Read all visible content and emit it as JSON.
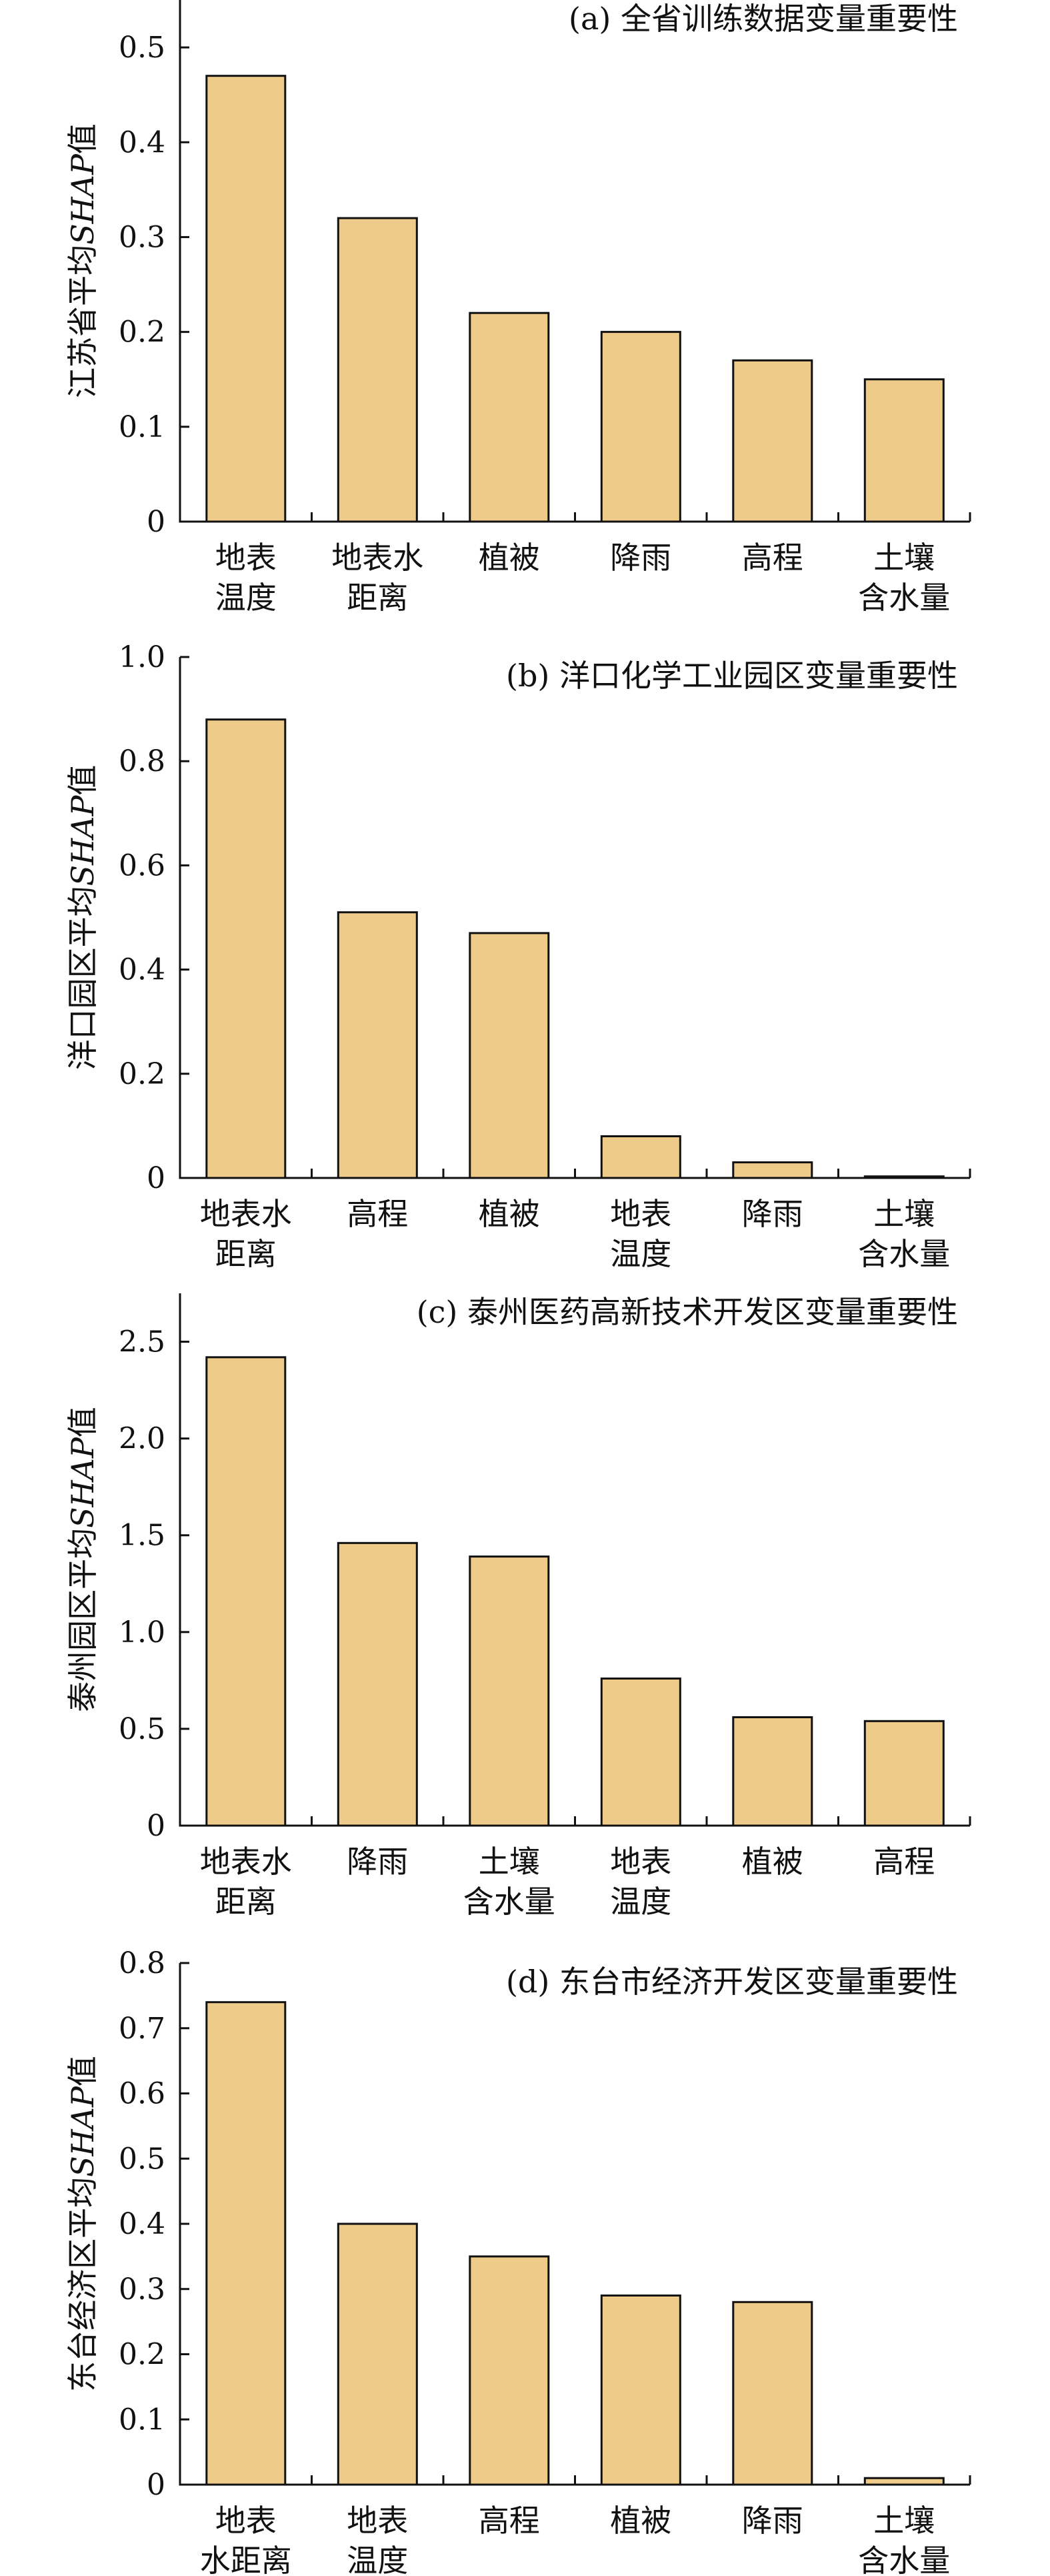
{
  "bar_color": "#efcb8a",
  "bar_stroke": "#111111",
  "chart_data": [
    {
      "type": "bar",
      "title": "(a) 全省训练数据变量重要性",
      "ylabel": "江苏省平均SHAP值",
      "ylim": [
        0,
        0.55
      ],
      "yticks": [
        0,
        0.1,
        0.2,
        0.3,
        0.4,
        0.5
      ],
      "ytick_labels": [
        "0",
        "0.1",
        "0.2",
        "0.3",
        "0.4",
        "0.5"
      ],
      "categories": [
        "地表\n温度",
        "地表水\n距离",
        "植被",
        "降雨",
        "高程",
        "土壤\n含水量"
      ],
      "values": [
        0.47,
        0.32,
        0.22,
        0.2,
        0.17,
        0.15
      ]
    },
    {
      "type": "bar",
      "title": "(b) 洋口化学工业园区变量重要性",
      "ylabel": "洋口园区平均SHAP值",
      "ylim": [
        0,
        1.0
      ],
      "yticks": [
        0,
        0.2,
        0.4,
        0.6,
        0.8,
        1.0
      ],
      "ytick_labels": [
        "0",
        "0.2",
        "0.4",
        "0.6",
        "0.8",
        "1.0"
      ],
      "categories": [
        "地表水\n距离",
        "高程",
        "植被",
        "地表\n温度",
        "降雨",
        "土壤\n含水量"
      ],
      "values": [
        0.88,
        0.51,
        0.47,
        0.08,
        0.03,
        0.003
      ]
    },
    {
      "type": "bar",
      "title": "(c) 泰州医药高新技术开发区变量重要性",
      "ylabel": "泰州园区平均SHAP值",
      "ylim": [
        0,
        2.75
      ],
      "yticks": [
        0,
        0.5,
        1.0,
        1.5,
        2.0,
        2.5
      ],
      "ytick_labels": [
        "0",
        "0.5",
        "1.0",
        "1.5",
        "2.0",
        "2.5"
      ],
      "categories": [
        "地表水\n距离",
        "降雨",
        "土壤\n含水量",
        "地表\n温度",
        "植被",
        "高程"
      ],
      "values": [
        2.42,
        1.46,
        1.39,
        0.76,
        0.56,
        0.54
      ]
    },
    {
      "type": "bar",
      "title": "(d) 东台市经济开发区变量重要性",
      "ylabel": "东台经济区平均SHAP值",
      "ylim": [
        0,
        0.8
      ],
      "yticks": [
        0,
        0.1,
        0.2,
        0.3,
        0.4,
        0.5,
        0.6,
        0.7,
        0.8
      ],
      "ytick_labels": [
        "0",
        "0.1",
        "0.2",
        "0.3",
        "0.4",
        "0.5",
        "0.6",
        "0.7",
        "0.8"
      ],
      "categories": [
        "地表\n水距离",
        "地表\n温度",
        "高程",
        "植被",
        "降雨",
        "土壤\n含水量"
      ],
      "values": [
        0.74,
        0.4,
        0.35,
        0.29,
        0.28,
        0.01
      ]
    }
  ]
}
